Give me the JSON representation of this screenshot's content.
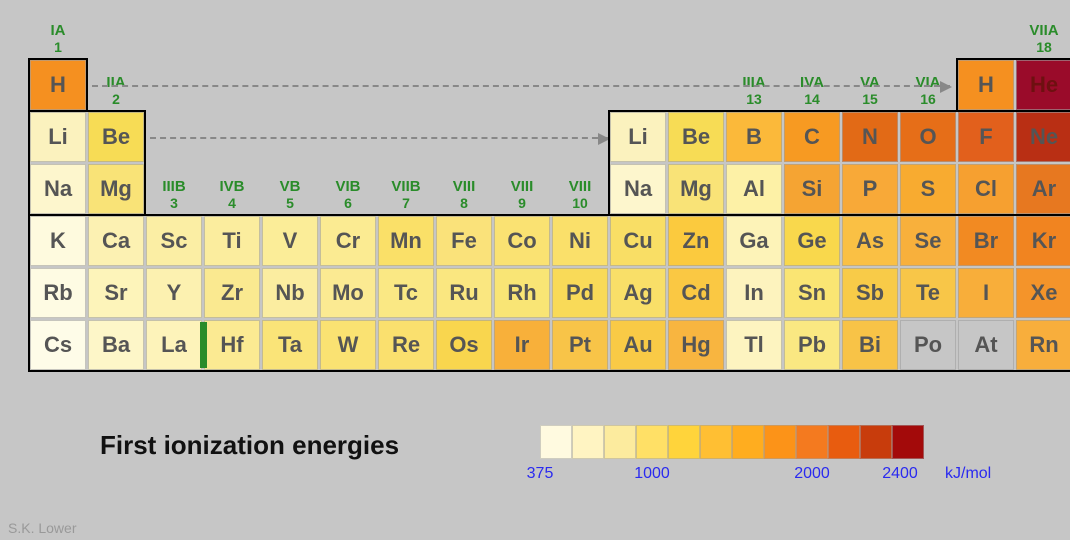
{
  "title": "First ionization energies",
  "attribution": "S.K. Lower",
  "cell": {
    "w": 56,
    "h": 50,
    "gap": 2
  },
  "colorScale": {
    "values": [
      375,
      1000,
      2000,
      2400
    ],
    "unit": "kJ/mol",
    "swatches": [
      "#fffae0",
      "#fff4c2",
      "#fceb9e",
      "#ffe066",
      "#ffd43b",
      "#ffbf33",
      "#ffad1f",
      "#fc9318",
      "#f47a1f",
      "#e85c0f",
      "#c83c0c",
      "#a30a0a"
    ]
  },
  "groups": [
    {
      "roman": "IA",
      "num": "1",
      "col": 0,
      "rowTop": -1
    },
    {
      "roman": "IIA",
      "num": "2",
      "col": 1,
      "rowTop": 0
    },
    {
      "roman": "IIIB",
      "num": "3",
      "col": 2,
      "rowTop": 2
    },
    {
      "roman": "IVB",
      "num": "4",
      "col": 3,
      "rowTop": 2
    },
    {
      "roman": "VB",
      "num": "5",
      "col": 4,
      "rowTop": 2
    },
    {
      "roman": "VIB",
      "num": "6",
      "col": 5,
      "rowTop": 2
    },
    {
      "roman": "VIIB",
      "num": "7",
      "col": 6,
      "rowTop": 2
    },
    {
      "roman": "VIII",
      "num": "8",
      "col": 7,
      "rowTop": 2
    },
    {
      "roman": "VIII",
      "num": "9",
      "col": 8,
      "rowTop": 2
    },
    {
      "roman": "VIII",
      "num": "10",
      "col": 9,
      "rowTop": 2
    },
    {
      "roman": "IIIA",
      "num": "13",
      "col": 12,
      "rowTop": 0
    },
    {
      "roman": "IVA",
      "num": "14",
      "col": 13,
      "rowTop": 0
    },
    {
      "roman": "VA",
      "num": "15",
      "col": 14,
      "rowTop": 0
    },
    {
      "roman": "VIA",
      "num": "16",
      "col": 15,
      "rowTop": 0
    },
    {
      "roman": "VIIA",
      "num": "18",
      "col": 17,
      "rowTop": -1
    }
  ],
  "cells": [
    {
      "sym": "H",
      "col": 0,
      "row": 0,
      "color": "#f59020"
    },
    {
      "sym": "H",
      "col": 16,
      "row": 0,
      "color": "#f59020"
    },
    {
      "sym": "He",
      "col": 17,
      "row": 0,
      "color": "#9a0b2a",
      "text": "#6e1010"
    },
    {
      "sym": "Li",
      "col": 0,
      "row": 1,
      "color": "#fbf2be"
    },
    {
      "sym": "Be",
      "col": 1,
      "row": 1,
      "color": "#f7dc55"
    },
    {
      "sym": "Li",
      "col": 10,
      "row": 1,
      "color": "#fbf2be"
    },
    {
      "sym": "Be",
      "col": 11,
      "row": 1,
      "color": "#f7dc55"
    },
    {
      "sym": "B",
      "col": 12,
      "row": 1,
      "color": "#fbb93a"
    },
    {
      "sym": "C",
      "col": 13,
      "row": 1,
      "color": "#f79a22"
    },
    {
      "sym": "N",
      "col": 14,
      "row": 1,
      "color": "#e26a16"
    },
    {
      "sym": "O",
      "col": 15,
      "row": 1,
      "color": "#e66e18"
    },
    {
      "sym": "F",
      "col": 16,
      "row": 1,
      "color": "#e2601c"
    },
    {
      "sym": "Ne",
      "col": 17,
      "row": 1,
      "color": "#b92f14"
    },
    {
      "sym": "Na",
      "col": 0,
      "row": 2,
      "color": "#fdf6cd"
    },
    {
      "sym": "Mg",
      "col": 1,
      "row": 2,
      "color": "#f9e377"
    },
    {
      "sym": "Na",
      "col": 10,
      "row": 2,
      "color": "#fdf6cd"
    },
    {
      "sym": "Mg",
      "col": 11,
      "row": 2,
      "color": "#f9e377"
    },
    {
      "sym": "Al",
      "col": 12,
      "row": 2,
      "color": "#fdf1a6"
    },
    {
      "sym": "Si",
      "col": 13,
      "row": 2,
      "color": "#f5a433"
    },
    {
      "sym": "P",
      "col": 14,
      "row": 2,
      "color": "#f8a938"
    },
    {
      "sym": "S",
      "col": 15,
      "row": 2,
      "color": "#f8ab30"
    },
    {
      "sym": "Cl",
      "col": 16,
      "row": 2,
      "color": "#f6a030"
    },
    {
      "sym": "Ar",
      "col": 17,
      "row": 2,
      "color": "#e77820"
    },
    {
      "sym": "K",
      "col": 0,
      "row": 3,
      "color": "#fefade"
    },
    {
      "sym": "Ca",
      "col": 1,
      "row": 3,
      "color": "#fcf1b2"
    },
    {
      "sym": "Sc",
      "col": 2,
      "row": 3,
      "color": "#fbeea4"
    },
    {
      "sym": "Ti",
      "col": 3,
      "row": 3,
      "color": "#fbed9e"
    },
    {
      "sym": "V",
      "col": 4,
      "row": 3,
      "color": "#fbed98"
    },
    {
      "sym": "Cr",
      "col": 5,
      "row": 3,
      "color": "#fbeb92"
    },
    {
      "sym": "Mn",
      "col": 6,
      "row": 3,
      "color": "#fae068"
    },
    {
      "sym": "Fe",
      "col": 7,
      "row": 3,
      "color": "#fae27a"
    },
    {
      "sym": "Co",
      "col": 8,
      "row": 3,
      "color": "#fae272"
    },
    {
      "sym": "Ni",
      "col": 9,
      "row": 3,
      "color": "#fae06a"
    },
    {
      "sym": "Cu",
      "col": 10,
      "row": 3,
      "color": "#f9de65"
    },
    {
      "sym": "Zn",
      "col": 11,
      "row": 3,
      "color": "#fbca3e"
    },
    {
      "sym": "Ga",
      "col": 12,
      "row": 3,
      "color": "#fdf3b8"
    },
    {
      "sym": "Ge",
      "col": 13,
      "row": 3,
      "color": "#f9d84c"
    },
    {
      "sym": "As",
      "col": 14,
      "row": 3,
      "color": "#fac044"
    },
    {
      "sym": "Se",
      "col": 15,
      "row": 3,
      "color": "#f8b03c"
    },
    {
      "sym": "Br",
      "col": 16,
      "row": 3,
      "color": "#f28a22"
    },
    {
      "sym": "Kr",
      "col": 17,
      "row": 3,
      "color": "#f18420"
    },
    {
      "sym": "Rb",
      "col": 0,
      "row": 4,
      "color": "#fefbe3"
    },
    {
      "sym": "Sr",
      "col": 1,
      "row": 4,
      "color": "#fdf4ba"
    },
    {
      "sym": "Y",
      "col": 2,
      "row": 4,
      "color": "#fcf1b0"
    },
    {
      "sym": "Zr",
      "col": 3,
      "row": 4,
      "color": "#fae990"
    },
    {
      "sym": "Nb",
      "col": 4,
      "row": 4,
      "color": "#fbeda0"
    },
    {
      "sym": "Mo",
      "col": 5,
      "row": 4,
      "color": "#fbea92"
    },
    {
      "sym": "Tc",
      "col": 6,
      "row": 4,
      "color": "#fae884"
    },
    {
      "sym": "Ru",
      "col": 7,
      "row": 4,
      "color": "#fae780"
    },
    {
      "sym": "Rh",
      "col": 8,
      "row": 4,
      "color": "#f9e575"
    },
    {
      "sym": "Pd",
      "col": 9,
      "row": 4,
      "color": "#f9da58"
    },
    {
      "sym": "Ag",
      "col": 10,
      "row": 4,
      "color": "#f9df68"
    },
    {
      "sym": "Cd",
      "col": 11,
      "row": 4,
      "color": "#fac843"
    },
    {
      "sym": "In",
      "col": 12,
      "row": 4,
      "color": "#fdf3be"
    },
    {
      "sym": "Sn",
      "col": 13,
      "row": 4,
      "color": "#fae573"
    },
    {
      "sym": "Sb",
      "col": 14,
      "row": 4,
      "color": "#f8cb48"
    },
    {
      "sym": "Te",
      "col": 15,
      "row": 4,
      "color": "#f8c648"
    },
    {
      "sym": "I",
      "col": 16,
      "row": 4,
      "color": "#f8ae3a"
    },
    {
      "sym": "Xe",
      "col": 17,
      "row": 4,
      "color": "#f4942a"
    },
    {
      "sym": "Cs",
      "col": 0,
      "row": 5,
      "color": "#fefce8"
    },
    {
      "sym": "Ba",
      "col": 1,
      "row": 5,
      "color": "#fdf6c8"
    },
    {
      "sym": "La",
      "col": 2,
      "row": 5,
      "color": "#fdf3ba"
    },
    {
      "sym": "Hf",
      "col": 3,
      "row": 5,
      "color": "#fbea92"
    },
    {
      "sym": "Ta",
      "col": 4,
      "row": 5,
      "color": "#fae478"
    },
    {
      "sym": "W",
      "col": 5,
      "row": 5,
      "color": "#fae272"
    },
    {
      "sym": "Re",
      "col": 6,
      "row": 5,
      "color": "#fae06e"
    },
    {
      "sym": "Os",
      "col": 7,
      "row": 5,
      "color": "#f9d64e"
    },
    {
      "sym": "Ir",
      "col": 8,
      "row": 5,
      "color": "#f8b03a"
    },
    {
      "sym": "Pt",
      "col": 9,
      "row": 5,
      "color": "#f8c448"
    },
    {
      "sym": "Au",
      "col": 10,
      "row": 5,
      "color": "#f9ca46"
    },
    {
      "sym": "Hg",
      "col": 11,
      "row": 5,
      "color": "#f8b540"
    },
    {
      "sym": "Tl",
      "col": 12,
      "row": 5,
      "color": "#fdf4c0"
    },
    {
      "sym": "Pb",
      "col": 13,
      "row": 5,
      "color": "#fae882"
    },
    {
      "sym": "Bi",
      "col": 14,
      "row": 5,
      "color": "#f8c347"
    },
    {
      "sym": "Po",
      "col": 15,
      "row": 5,
      "color": "#c6c6c6"
    },
    {
      "sym": "At",
      "col": 16,
      "row": 5,
      "color": "#c6c6c6"
    },
    {
      "sym": "Rn",
      "col": 17,
      "row": 5,
      "color": "#f8ae3c"
    }
  ],
  "arrows": [
    {
      "row": 0,
      "fromCol": 1,
      "toCol": 15.8
    },
    {
      "row": 1,
      "fromCol": 2,
      "toCol": 9.9
    }
  ]
}
